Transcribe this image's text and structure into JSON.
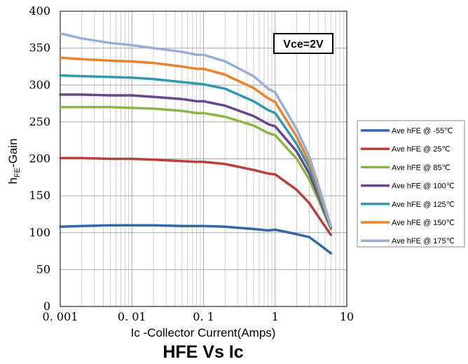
{
  "chart_data": {
    "type": "line",
    "title": "HFE Vs Ic",
    "xlabel": "Ic -Collector Current(Amps)",
    "ylabel": {
      "main": "h",
      "sub": "FE",
      "rest": "-Gain"
    },
    "x_scale": "log",
    "xlim": [
      0.001,
      10
    ],
    "ylim": [
      0,
      400
    ],
    "x_tick_labels": [
      "0. 001",
      "0. 01",
      "0. 1",
      "1",
      "10"
    ],
    "y_ticks": [
      0,
      50,
      100,
      150,
      200,
      250,
      300,
      350,
      400
    ],
    "grid": true,
    "legend_position": "right",
    "annotation": "Vce=2V",
    "series": [
      {
        "name": "Ave hFE @ -55℃",
        "color": "#3567a8",
        "x": [
          0.001,
          0.002,
          0.005,
          0.01,
          0.02,
          0.05,
          0.08,
          0.1,
          0.2,
          0.5,
          0.8,
          1,
          2,
          3,
          4,
          6
        ],
        "y": [
          108,
          109,
          110,
          110,
          110,
          109,
          109,
          109,
          108,
          105,
          103,
          104,
          98,
          94,
          85,
          72
        ]
      },
      {
        "name": "Ave hFE @ 25℃",
        "color": "#b8403c",
        "x": [
          0.001,
          0.002,
          0.005,
          0.01,
          0.02,
          0.05,
          0.08,
          0.1,
          0.2,
          0.5,
          0.8,
          1,
          2,
          3,
          4,
          6
        ],
        "y": [
          201,
          201,
          200,
          200,
          199,
          197,
          196,
          196,
          193,
          185,
          180,
          179,
          158,
          140,
          122,
          97
        ]
      },
      {
        "name": "Ave hFE @ 85℃",
        "color": "#8cb545",
        "x": [
          0.001,
          0.002,
          0.005,
          0.01,
          0.02,
          0.05,
          0.08,
          0.1,
          0.2,
          0.5,
          0.8,
          1,
          2,
          3,
          4,
          6
        ],
        "y": [
          270,
          270,
          270,
          269,
          268,
          265,
          262,
          262,
          257,
          245,
          235,
          232,
          200,
          172,
          145,
          105
        ]
      },
      {
        "name": "Ave hFE @ 100℃",
        "color": "#6a4592",
        "x": [
          0.001,
          0.002,
          0.005,
          0.01,
          0.02,
          0.05,
          0.08,
          0.1,
          0.2,
          0.5,
          0.8,
          1,
          2,
          3,
          4,
          6
        ],
        "y": [
          287,
          287,
          286,
          286,
          284,
          281,
          278,
          278,
          272,
          258,
          247,
          244,
          210,
          180,
          150,
          106
        ]
      },
      {
        "name": "Ave hFE @ 125℃",
        "color": "#2f9aae",
        "x": [
          0.001,
          0.002,
          0.005,
          0.01,
          0.02,
          0.05,
          0.08,
          0.1,
          0.2,
          0.5,
          0.8,
          1,
          2,
          3,
          4,
          6
        ],
        "y": [
          313,
          312,
          311,
          310,
          308,
          304,
          302,
          301,
          295,
          278,
          266,
          262,
          220,
          188,
          155,
          107
        ]
      },
      {
        "name": "Ave hFE @ 150℃",
        "color": "#e9832d",
        "x": [
          0.001,
          0.002,
          0.005,
          0.01,
          0.02,
          0.05,
          0.08,
          0.1,
          0.2,
          0.5,
          0.8,
          1,
          2,
          3,
          4,
          6
        ],
        "y": [
          337,
          335,
          333,
          332,
          330,
          325,
          322,
          322,
          314,
          296,
          282,
          277,
          230,
          195,
          160,
          108
        ]
      },
      {
        "name": "Ave hFE @ 175℃",
        "color": "#97afd8",
        "x": [
          0.001,
          0.002,
          0.005,
          0.01,
          0.02,
          0.05,
          0.08,
          0.1,
          0.2,
          0.5,
          0.8,
          1,
          2,
          3,
          4,
          6
        ],
        "y": [
          370,
          363,
          357,
          354,
          350,
          345,
          341,
          341,
          332,
          312,
          295,
          290,
          240,
          203,
          165,
          109
        ]
      }
    ]
  }
}
